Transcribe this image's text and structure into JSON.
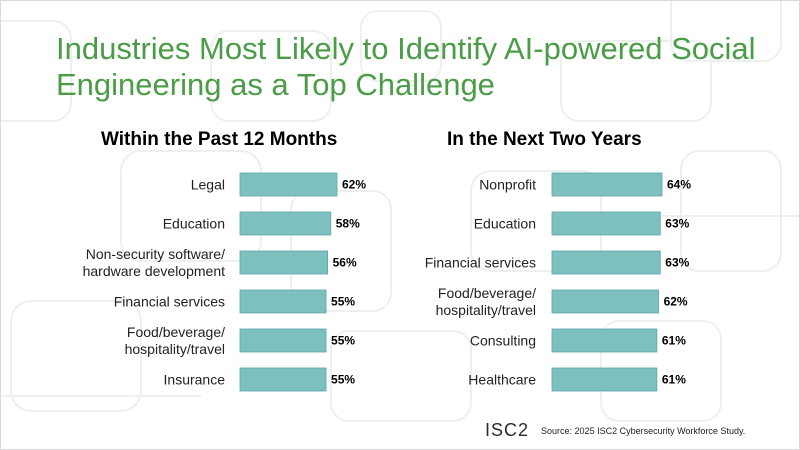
{
  "slide": {
    "title": "Industries Most Likely to Identify AI-powered Social Engineering as a Top Challenge",
    "logo": "ISC2",
    "source": "Source: 2025 ISC2 Cybersecurity Workforce Study.",
    "colors": {
      "title": "#4a9c46",
      "bar_fill": "#7cc0c0",
      "bar_stroke": "#5fa6a6"
    }
  },
  "chart_data": [
    {
      "type": "bar",
      "orientation": "horizontal",
      "title": "Within the Past 12 Months",
      "categories": [
        [
          "Legal"
        ],
        [
          "Education"
        ],
        [
          "Non-security software/",
          "hardware development"
        ],
        [
          "Financial services"
        ],
        [
          "Food/beverage/",
          "hospitality/travel"
        ],
        [
          "Insurance"
        ]
      ],
      "values": [
        62,
        58,
        56,
        55,
        55,
        55
      ],
      "value_labels": [
        "62%",
        "58%",
        "56%",
        "55%",
        "55%",
        "55%"
      ],
      "grid": false,
      "legend": "none"
    },
    {
      "type": "bar",
      "orientation": "horizontal",
      "title": "In the Next Two Years",
      "categories": [
        [
          "Nonprofit"
        ],
        [
          "Education"
        ],
        [
          "Financial services"
        ],
        [
          "Food/beverage/",
          "hospitality/travel"
        ],
        [
          "Consulting"
        ],
        [
          "Healthcare"
        ]
      ],
      "values": [
        64,
        63,
        63,
        62,
        61,
        61
      ],
      "value_labels": [
        "64%",
        "63%",
        "63%",
        "62%",
        "61%",
        "61%"
      ],
      "grid": false,
      "legend": "none"
    }
  ]
}
